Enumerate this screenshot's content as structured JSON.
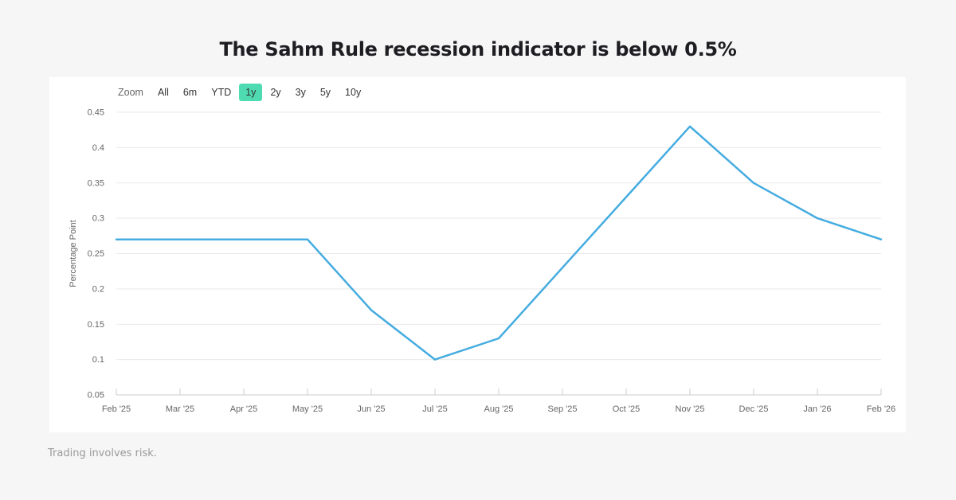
{
  "page": {
    "title": "The Sahm Rule recession indicator is below 0.5%",
    "footer_note": "Trading involves risk."
  },
  "toolbar": {
    "zoom_label": "Zoom",
    "buttons": [
      {
        "label": "All",
        "active": false
      },
      {
        "label": "6m",
        "active": false
      },
      {
        "label": "YTD",
        "active": false
      },
      {
        "label": "1y",
        "active": true
      },
      {
        "label": "2y",
        "active": false
      },
      {
        "label": "3y",
        "active": false
      },
      {
        "label": "5y",
        "active": false
      },
      {
        "label": "10y",
        "active": false
      }
    ],
    "active_button_color": "#4edbb2"
  },
  "chart_data": {
    "type": "line",
    "title": "",
    "categories": [
      "Feb '25",
      "Mar '25",
      "Apr '25",
      "May '25",
      "Jun '25",
      "Jul '25",
      "Aug '25",
      "Sep '25",
      "Oct '25",
      "Nov '25",
      "Dec '25",
      "Jan '26",
      "Feb '26"
    ],
    "values": [
      0.27,
      0.27,
      0.27,
      0.27,
      0.17,
      0.1,
      0.13,
      0.23,
      0.33,
      0.43,
      0.35,
      0.3,
      0.27
    ],
    "xlabel": "",
    "ylabel": "Percentage Point",
    "ylim": [
      0.05,
      0.45
    ],
    "yticks": [
      {
        "v": 0.45,
        "label": "0.45"
      },
      {
        "v": 0.4,
        "label": "0.4"
      },
      {
        "v": 0.35,
        "label": "0.35"
      },
      {
        "v": 0.3,
        "label": "0.3"
      },
      {
        "v": 0.25,
        "label": "0.25"
      },
      {
        "v": 0.2,
        "label": "0.2"
      },
      {
        "v": 0.15,
        "label": "0.15"
      },
      {
        "v": 0.1,
        "label": "0.1"
      },
      {
        "v": 0.05,
        "label": "0.05"
      }
    ],
    "grid": true,
    "legend": "none",
    "line_color": "#45ace0",
    "grid_color": "#e9e9e9",
    "axis_color": "#cccccc",
    "label_color": "#666666"
  }
}
